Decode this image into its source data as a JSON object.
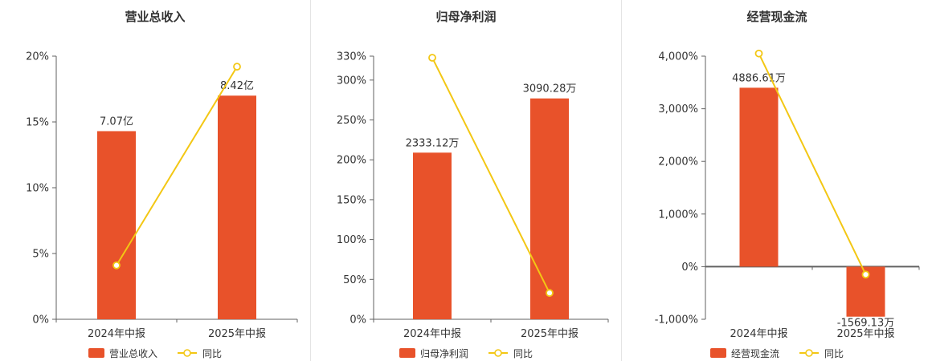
{
  "colors": {
    "bar": "#e8522a",
    "line": "#f3c714",
    "axis": "#616161",
    "text": "#333333",
    "divider": "#e4e4e4"
  },
  "chart_data": [
    {
      "type": "bar",
      "title": "营业总收入",
      "categories": [
        "2024年中报",
        "2025年中报"
      ],
      "bar_series": {
        "name": "营业总收入",
        "value_labels": [
          "7.07亿",
          "8.42亿"
        ],
        "axis_values": [
          14.3,
          17.0
        ]
      },
      "line_series": {
        "name": "同比",
        "values": [
          4.1,
          19.2
        ]
      },
      "ylim": [
        0,
        20
      ],
      "yticks": [
        {
          "v": 0,
          "label": "0%"
        },
        {
          "v": 5,
          "label": "5%"
        },
        {
          "v": 10,
          "label": "10%"
        },
        {
          "v": 15,
          "label": "15%"
        },
        {
          "v": 20,
          "label": "20%"
        }
      ],
      "legend_position": "bottom",
      "grid": false
    },
    {
      "type": "bar",
      "title": "归母净利润",
      "categories": [
        "2024年中报",
        "2025年中报"
      ],
      "bar_series": {
        "name": "归母净利润",
        "value_labels": [
          "2333.12万",
          "3090.28万"
        ],
        "axis_values": [
          209,
          277
        ]
      },
      "line_series": {
        "name": "同比",
        "values": [
          328,
          33
        ]
      },
      "ylim": [
        0,
        330
      ],
      "yticks": [
        {
          "v": 0,
          "label": "0%"
        },
        {
          "v": 50,
          "label": "50%"
        },
        {
          "v": 100,
          "label": "100%"
        },
        {
          "v": 150,
          "label": "150%"
        },
        {
          "v": 200,
          "label": "200%"
        },
        {
          "v": 250,
          "label": "250%"
        },
        {
          "v": 300,
          "label": "300%"
        },
        {
          "v": 330,
          "label": "330%"
        }
      ],
      "legend_position": "bottom",
      "grid": false
    },
    {
      "type": "bar",
      "title": "经营现金流",
      "categories": [
        "2024年中报",
        "2025年中报"
      ],
      "bar_series": {
        "name": "经营现金流",
        "value_labels": [
          "4886.61万",
          "-1569.13万"
        ],
        "axis_values": [
          3400,
          -950
        ]
      },
      "line_series": {
        "name": "同比",
        "values": [
          4050,
          -150
        ]
      },
      "ylim": [
        -1000,
        4000
      ],
      "yticks": [
        {
          "v": -1000,
          "label": "-1,000%"
        },
        {
          "v": 0,
          "label": "0%"
        },
        {
          "v": 1000,
          "label": "1,000%"
        },
        {
          "v": 2000,
          "label": "2,000%"
        },
        {
          "v": 3000,
          "label": "3,000%"
        },
        {
          "v": 4000,
          "label": "4,000%"
        }
      ],
      "legend_position": "bottom",
      "grid": false
    }
  ]
}
